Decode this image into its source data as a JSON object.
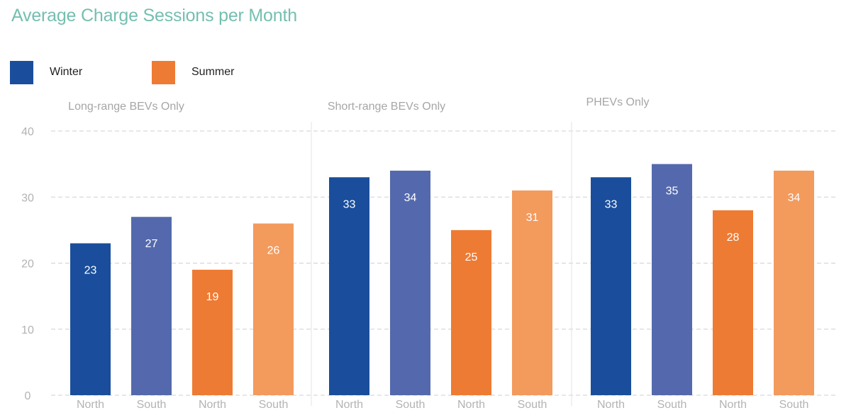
{
  "chart_data": {
    "type": "bar",
    "title": "Average Charge Sessions per Month",
    "ylim": [
      0,
      40
    ],
    "yticks": [
      0,
      10,
      20,
      30,
      40
    ],
    "grid": true,
    "legend_placement": "top-left",
    "legend": [
      {
        "name": "Winter",
        "color": "#1a4e9c"
      },
      {
        "name": "Summer",
        "color": "#ee7b33"
      }
    ],
    "groups": [
      {
        "label": "Long-range BEVs Only",
        "bars": [
          {
            "category": "North",
            "season": "Winter",
            "value": 23,
            "color": "#1a4e9c"
          },
          {
            "category": "South",
            "season": "Winter",
            "value": 27,
            "color": "#5469ad"
          },
          {
            "category": "North",
            "season": "Summer",
            "value": 19,
            "color": "#ee7b33"
          },
          {
            "category": "South",
            "season": "Summer",
            "value": 26,
            "color": "#f39a5d"
          }
        ]
      },
      {
        "label": "Short-range BEVs Only",
        "bars": [
          {
            "category": "North",
            "season": "Winter",
            "value": 33,
            "color": "#1a4e9c"
          },
          {
            "category": "South",
            "season": "Winter",
            "value": 34,
            "color": "#5469ad"
          },
          {
            "category": "North",
            "season": "Summer",
            "value": 25,
            "color": "#ee7b33"
          },
          {
            "category": "South",
            "season": "Summer",
            "value": 31,
            "color": "#f39a5d"
          }
        ]
      },
      {
        "label": "PHEVs Only",
        "bars": [
          {
            "category": "North",
            "season": "Winter",
            "value": 33,
            "color": "#1a4e9c"
          },
          {
            "category": "South",
            "season": "Winter",
            "value": 35,
            "color": "#5469ad"
          },
          {
            "category": "North",
            "season": "Summer",
            "value": 28,
            "color": "#ee7b33"
          },
          {
            "category": "South",
            "season": "Summer",
            "value": 34,
            "color": "#f39a5d"
          }
        ]
      }
    ]
  }
}
